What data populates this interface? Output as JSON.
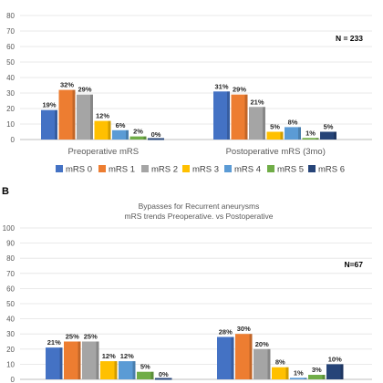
{
  "colors": [
    "#4472C4",
    "#ED7D31",
    "#A5A5A5",
    "#FFC000",
    "#5B9BD5",
    "#70AD47",
    "#264478"
  ],
  "legend_labels": [
    "mRS 0",
    "mRS 1",
    "mRS 2",
    "mRS 3",
    "mRS 4",
    "mRS 5",
    "mRS 6"
  ],
  "chart_data": [
    {
      "type": "bar",
      "panel_label": "",
      "title_lines": [],
      "annotation": "N = 233",
      "categories": [
        "Preoperative mRS",
        "Postoperative mRS (3mo)"
      ],
      "series": [
        {
          "name": "mRS 0",
          "values": [
            19,
            31
          ],
          "labels": [
            "19%",
            "31%"
          ]
        },
        {
          "name": "mRS 1",
          "values": [
            32,
            29
          ],
          "labels": [
            "32%",
            "29%"
          ]
        },
        {
          "name": "mRS 2",
          "values": [
            29,
            21
          ],
          "labels": [
            "29%",
            "21%"
          ]
        },
        {
          "name": "mRS 3",
          "values": [
            12,
            5
          ],
          "labels": [
            "12%",
            "5%"
          ]
        },
        {
          "name": "mRS 4",
          "values": [
            6,
            8
          ],
          "labels": [
            "6%",
            "8%"
          ]
        },
        {
          "name": "mRS 5",
          "values": [
            2,
            1
          ],
          "labels": [
            "2%",
            "1%"
          ]
        },
        {
          "name": "mRS 6",
          "values": [
            0,
            5
          ],
          "labels": [
            "0%",
            "5%"
          ]
        }
      ],
      "ylim": [
        0,
        90
      ],
      "ytick_step": 10,
      "gridlines": true
    },
    {
      "type": "bar",
      "panel_label": "B",
      "title_lines": [
        "Bypasses for Recurrent aneurysms",
        "mRS trends Preoperative. vs Postoperative"
      ],
      "annotation": "N=67",
      "categories": [
        "",
        ""
      ],
      "series": [
        {
          "name": "mRS 0",
          "values": [
            21,
            28
          ],
          "labels": [
            "21%",
            "28%"
          ]
        },
        {
          "name": "mRS 1",
          "values": [
            25,
            30
          ],
          "labels": [
            "25%",
            "30%"
          ]
        },
        {
          "name": "mRS 2",
          "values": [
            25,
            20
          ],
          "labels": [
            "25%",
            "20%"
          ]
        },
        {
          "name": "mRS 3",
          "values": [
            12,
            8
          ],
          "labels": [
            "12%",
            "8%"
          ]
        },
        {
          "name": "mRS 4",
          "values": [
            12,
            1
          ],
          "labels": [
            "12%",
            "1%"
          ]
        },
        {
          "name": "mRS 5",
          "values": [
            5,
            3
          ],
          "labels": [
            "5%",
            "3%"
          ]
        },
        {
          "name": "mRS 6",
          "values": [
            0,
            10
          ],
          "labels": [
            "0%",
            "10%"
          ]
        }
      ],
      "ylim": [
        0,
        100
      ],
      "ytick_step": 10,
      "gridlines": true
    }
  ]
}
